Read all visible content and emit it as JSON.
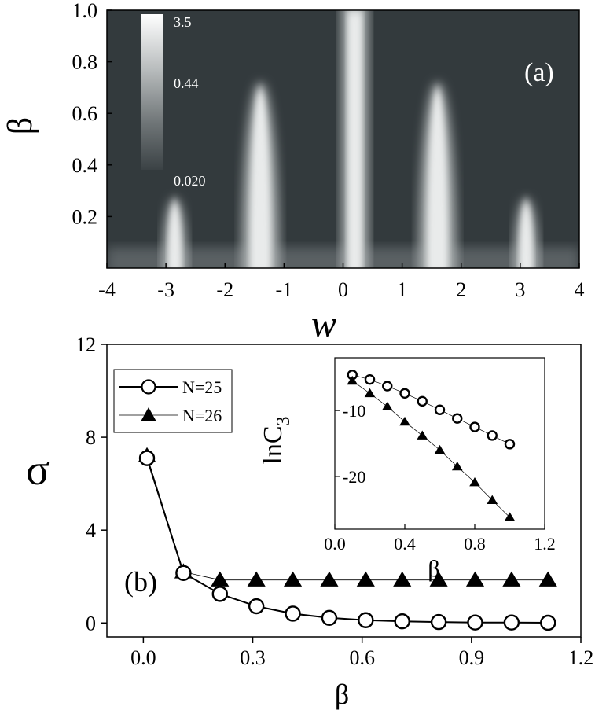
{
  "chart_data": [
    {
      "type": "heatmap",
      "panel_label": "(a)",
      "xlabel": "w",
      "ylabel": "β",
      "xlim": [
        -4,
        4
      ],
      "ylim": [
        0,
        1
      ],
      "xticks": [
        "-4",
        "-3",
        "-2",
        "-1",
        "0",
        "1",
        "2",
        "3",
        "4"
      ],
      "yticks": [
        "0.2",
        "0.4",
        "0.6",
        "0.8",
        "1.0"
      ],
      "colorbar": {
        "labels": [
          "3.5",
          "0.44",
          "0.020"
        ],
        "colors": [
          "#ffffff",
          "#333a3d"
        ]
      },
      "background_color": "#333a3d",
      "peaks": [
        {
          "center": 0.2,
          "width": 0.45,
          "beta_max": 1.0
        },
        {
          "center": -1.4,
          "width": 0.42,
          "beta_max": 0.72
        },
        {
          "center": 1.6,
          "width": 0.42,
          "beta_max": 0.72
        },
        {
          "center": -2.85,
          "width": 0.28,
          "beta_max": 0.27
        },
        {
          "center": 3.1,
          "width": 0.28,
          "beta_max": 0.27
        }
      ]
    },
    {
      "type": "line",
      "panel_label": "(b)",
      "xlabel": "β",
      "ylabel": "σ",
      "xlim": [
        -0.1,
        1.2
      ],
      "ylim": [
        -0.6,
        12
      ],
      "xticks": [
        "0.0",
        "0.3",
        "0.6",
        "0.9",
        "1.2"
      ],
      "yticks": [
        "0",
        "4",
        "8",
        "12"
      ],
      "x": [
        0.01,
        0.11,
        0.21,
        0.31,
        0.41,
        0.51,
        0.61,
        0.71,
        0.81,
        0.91,
        1.01,
        1.11
      ],
      "series": [
        {
          "name": "N=25",
          "marker": "open-circle",
          "values": [
            7.1,
            2.15,
            1.25,
            0.72,
            0.4,
            0.22,
            0.12,
            0.07,
            0.04,
            0.02,
            0.02,
            0.01
          ]
        },
        {
          "name": "N=26",
          "marker": "filled-triangle",
          "values": [
            7.2,
            2.2,
            1.85,
            1.85,
            1.85,
            1.85,
            1.85,
            1.85,
            1.85,
            1.85,
            1.85,
            1.85
          ]
        }
      ],
      "inset": {
        "xlabel": "β",
        "ylabel": "lnC3",
        "xlim": [
          0,
          1.2
        ],
        "ylim": [
          -28,
          -2
        ],
        "xticks": [
          "0.0",
          "0.4",
          "0.8",
          "1.2"
        ],
        "yticks": [
          "-10",
          "-20"
        ],
        "x": [
          0.1,
          0.2,
          0.3,
          0.4,
          0.5,
          0.6,
          0.7,
          0.8,
          0.9,
          1.0
        ],
        "series": [
          {
            "name": "N=25",
            "marker": "open-circle",
            "values": [
              -4.6,
              -5.3,
              -6.3,
              -7.4,
              -8.6,
              -9.9,
              -11.2,
              -12.5,
              -13.8,
              -15.1
            ]
          },
          {
            "name": "N=26",
            "marker": "filled-triangle",
            "values": [
              -5.5,
              -7.4,
              -9.4,
              -11.7,
              -13.8,
              -16.0,
              -18.5,
              -20.9,
              -23.6,
              -26.2
            ]
          }
        ]
      }
    }
  ]
}
